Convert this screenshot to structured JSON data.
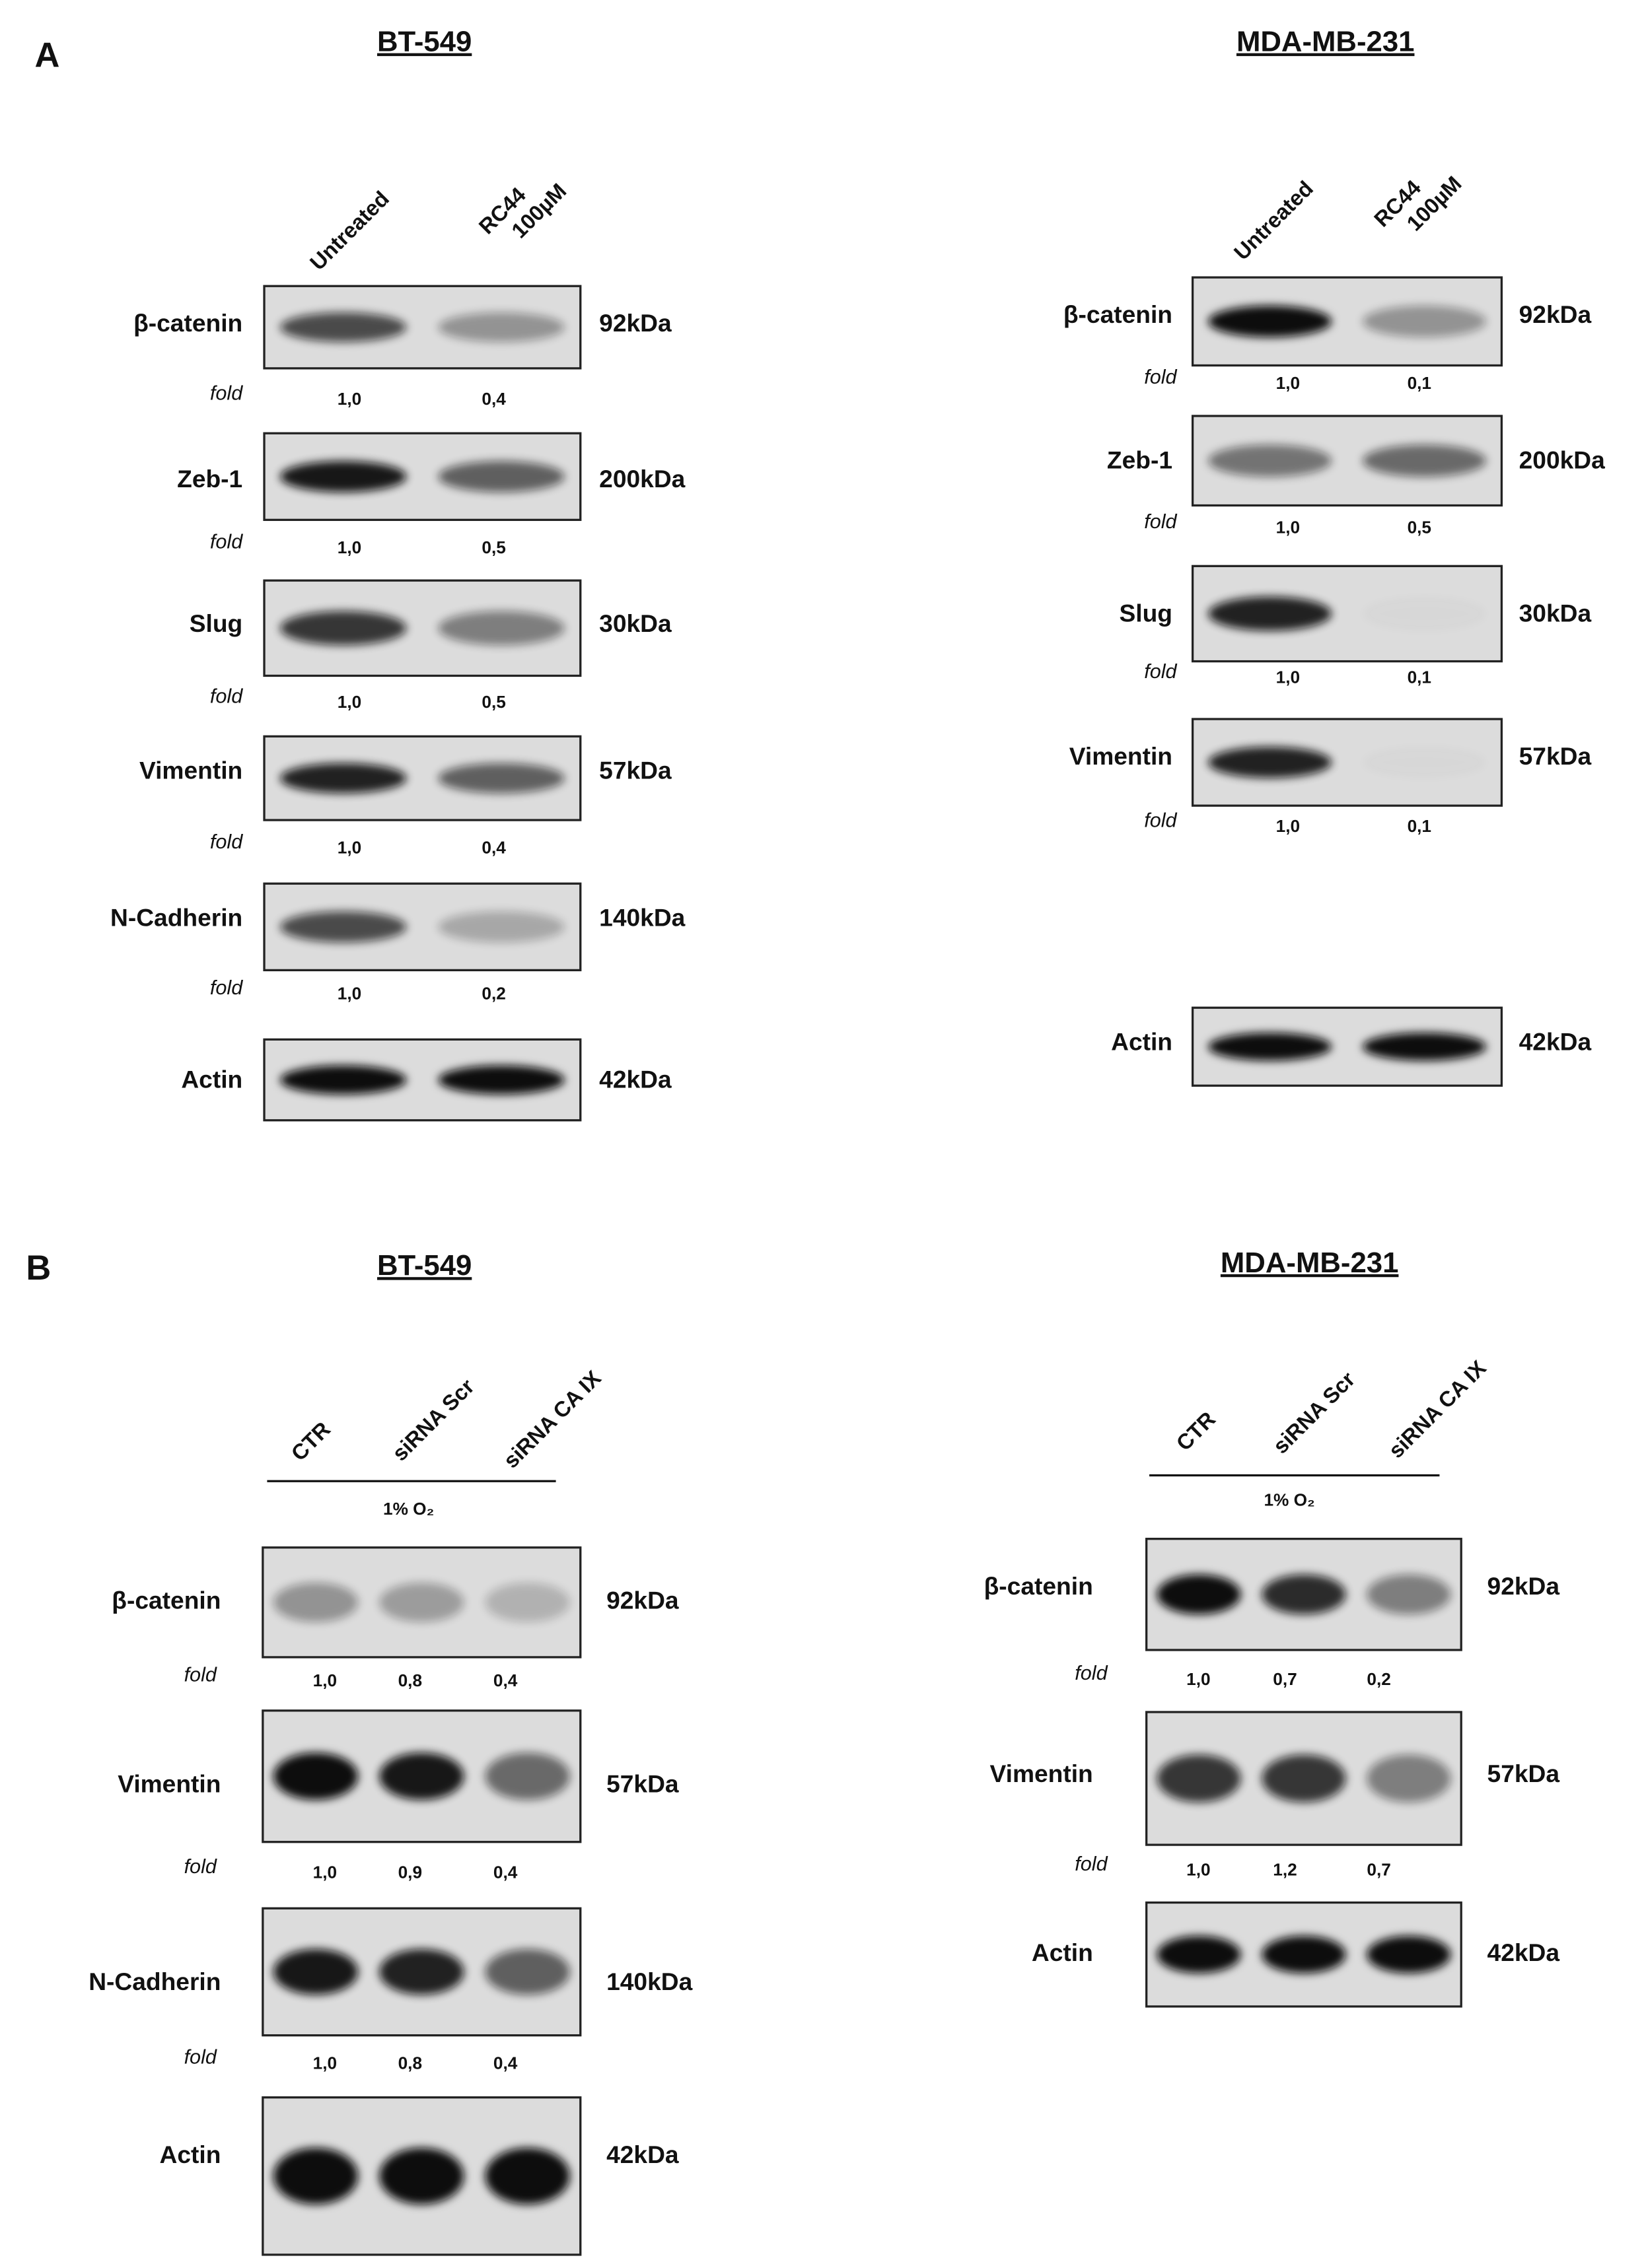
{
  "panels": [
    {
      "label": "A",
      "blots": [
        {
          "title": "BT-549",
          "lanes": [
            [
              "Untreated"
            ],
            [
              "RC44",
              "100µM"
            ]
          ],
          "rows": [
            {
              "protein": "β-catenin",
              "kda": "92kDa",
              "fold_label": "fold",
              "fold": [
                "1,0",
                "0,4"
              ]
            },
            {
              "protein": "Zeb-1",
              "kda": "200kDa",
              "fold_label": "fold",
              "fold": [
                "1,0",
                "0,5"
              ]
            },
            {
              "protein": "Slug",
              "kda": "30kDa",
              "fold_label": "fold",
              "fold": [
                "1,0",
                "0,5"
              ]
            },
            {
              "protein": "Vimentin",
              "kda": "57kDa",
              "fold_label": "fold",
              "fold": [
                "1,0",
                "0,4"
              ]
            },
            {
              "protein": "N-Cadherin",
              "kda": "140kDa",
              "fold_label": "fold",
              "fold": [
                "1,0",
                "0,2"
              ]
            },
            {
              "protein": "Actin",
              "kda": "42kDa"
            }
          ]
        },
        {
          "title": "MDA-MB-231",
          "lanes": [
            [
              "Untreated"
            ],
            [
              "RC44",
              "100µM"
            ]
          ],
          "rows": [
            {
              "protein": "β-catenin",
              "kda": "92kDa",
              "fold_label": "fold",
              "fold": [
                "1,0",
                "0,1"
              ]
            },
            {
              "protein": "Zeb-1",
              "kda": "200kDa",
              "fold_label": "fold",
              "fold": [
                "1,0",
                "0,5"
              ]
            },
            {
              "protein": "Slug",
              "kda": "30kDa",
              "fold_label": "fold",
              "fold": [
                "1,0",
                "0,1"
              ]
            },
            {
              "protein": "Vimentin",
              "kda": "57kDa",
              "fold_label": "fold",
              "fold": [
                "1,0",
                "0,1"
              ]
            },
            {
              "protein": "Actin",
              "kda": "42kDa"
            }
          ]
        }
      ]
    },
    {
      "label": "B",
      "blots": [
        {
          "title": "BT-549",
          "lanes": [
            [
              "CTR"
            ],
            [
              "siRNA Scr"
            ],
            [
              "siRNA CA IX"
            ]
          ],
          "condition": "1% O₂",
          "rows": [
            {
              "protein": "β-catenin",
              "kda": "92kDa",
              "fold_label": "fold",
              "fold": [
                "1,0",
                "0,8",
                "0,4"
              ]
            },
            {
              "protein": "Vimentin",
              "kda": "57kDa",
              "fold_label": "fold",
              "fold": [
                "1,0",
                "0,9",
                "0,4"
              ]
            },
            {
              "protein": "N-Cadherin",
              "kda": "140kDa",
              "fold_label": "fold",
              "fold": [
                "1,0",
                "0,8",
                "0,4"
              ]
            },
            {
              "protein": "Actin",
              "kda": "42kDa"
            }
          ]
        },
        {
          "title": "MDA-MB-231",
          "lanes": [
            [
              "CTR"
            ],
            [
              "siRNA Scr"
            ],
            [
              "siRNA CA IX"
            ]
          ],
          "condition": "1% O₂",
          "rows": [
            {
              "protein": "β-catenin",
              "kda": "92kDa",
              "fold_label": "fold",
              "fold": [
                "1,0",
                "0,7",
                "0,2"
              ]
            },
            {
              "protein": "Vimentin",
              "kda": "57kDa",
              "fold_label": "fold",
              "fold": [
                "1,0",
                "1,2",
                "0,7"
              ]
            },
            {
              "protein": "Actin",
              "kda": "42kDa"
            }
          ]
        }
      ]
    }
  ]
}
